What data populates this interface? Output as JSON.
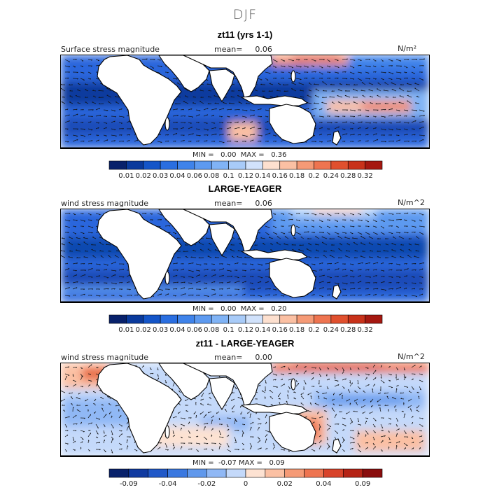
{
  "figure": {
    "title": "DJF"
  },
  "chart_data": [
    {
      "type": "heatmap",
      "title": "zt11 (yrs 1-1)",
      "variable_label": "Surface stress magnitude",
      "mean_label": "mean=",
      "mean_value": "0.06",
      "units": "N/m²",
      "min_label": "MIN =",
      "min_value": "0.00",
      "max_label": "MAX =",
      "max_value": "0.36",
      "colorbar": {
        "tick_labels": [
          "0.01",
          "0.02",
          "0.03",
          "0.04",
          "0.06",
          "0.08",
          "0.1",
          "0.12",
          "0.14",
          "0.16",
          "0.18",
          "0.2",
          "0.24",
          "0.28",
          "0.32"
        ],
        "colors": [
          "#08216b",
          "#0a3a9c",
          "#1455c8",
          "#2a6ee0",
          "#3f83ea",
          "#5d9af0",
          "#80b3f5",
          "#a8cbf8",
          "#d1e2fb",
          "#fde0cf",
          "#fbc0a3",
          "#f59a76",
          "#ee7450",
          "#e0502e",
          "#c8321a",
          "#a51810"
        ]
      }
    },
    {
      "type": "heatmap",
      "title": "LARGE-YEAGER",
      "variable_label": "wind stress magnitude",
      "mean_label": "mean=",
      "mean_value": "0.06",
      "units": "N/m^2",
      "min_label": "MIN =",
      "min_value": "0.00",
      "max_label": "MAX =",
      "max_value": "0.20",
      "colorbar": {
        "tick_labels": [
          "0.01",
          "0.02",
          "0.03",
          "0.04",
          "0.06",
          "0.08",
          "0.1",
          "0.12",
          "0.14",
          "0.16",
          "0.18",
          "0.2",
          "0.24",
          "0.28",
          "0.32"
        ],
        "colors": [
          "#08216b",
          "#0a3a9c",
          "#1455c8",
          "#2a6ee0",
          "#3f83ea",
          "#5d9af0",
          "#80b3f5",
          "#a8cbf8",
          "#d1e2fb",
          "#fde0cf",
          "#fbc0a3",
          "#f59a76",
          "#ee7450",
          "#e0502e",
          "#c8321a",
          "#a51810"
        ]
      }
    },
    {
      "type": "heatmap",
      "title": "zt11 - LARGE-YEAGER",
      "variable_label": "wind stress magnitude",
      "mean_label": "mean=",
      "mean_value": "0.00",
      "units": "N/m^2",
      "min_label": "MIN =",
      "min_value": "-0.07",
      "max_label": "MAX =",
      "max_value": "0.09",
      "colorbar": {
        "tick_labels": [
          "-0.09",
          "",
          "-0.04",
          "",
          "-0.02",
          "",
          "0",
          "",
          "0.02",
          "",
          "0.04",
          "",
          "0.09"
        ],
        "colors": [
          "#08216b",
          "#103aa0",
          "#2058c8",
          "#3a78e0",
          "#6098ec",
          "#90b8f5",
          "#c4d9fa",
          "#fde2d2",
          "#fbc0a3",
          "#f59a76",
          "#ee7450",
          "#d8432a",
          "#b52315",
          "#8a0d0d"
        ]
      }
    }
  ]
}
